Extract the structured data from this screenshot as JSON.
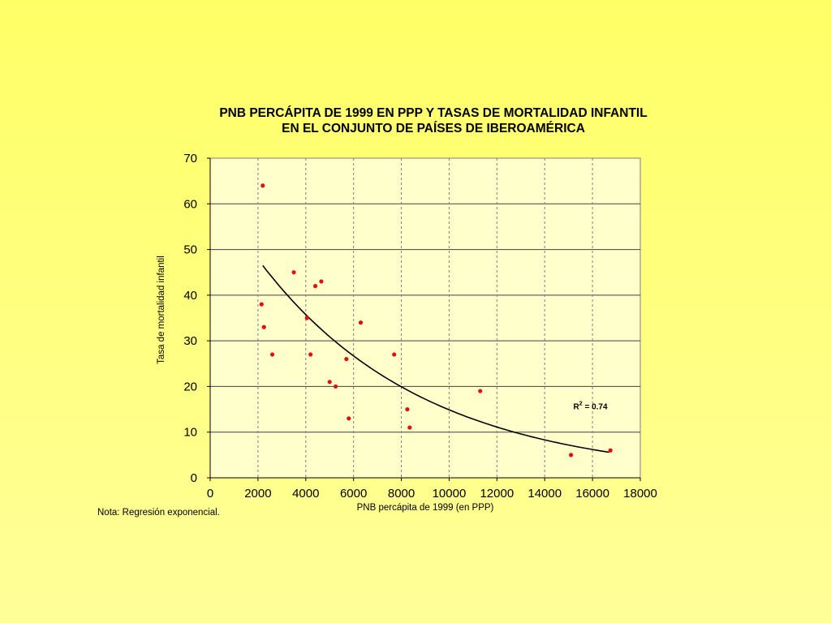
{
  "chart_data": {
    "type": "scatter",
    "title_lines": [
      "PNB PERCÁPITA DE 1999 EN PPP Y TASAS DE MORTALIDAD INFANTIL",
      "EN EL CONJUNTO DE PAÍSES DE IBEROAMÉRICA"
    ],
    "xlabel": "PNB percápita de 1999 (en PPP)",
    "ylabel": "Tasa de mortalidad infantil",
    "xlim": [
      0,
      18000
    ],
    "ylim": [
      0,
      70
    ],
    "x_ticks": [
      "0",
      "2000",
      "4000",
      "6000",
      "8000",
      "10000",
      "12000",
      "14000",
      "16000",
      "18000"
    ],
    "y_ticks": [
      "0",
      "10",
      "20",
      "30",
      "40",
      "50",
      "60",
      "70"
    ],
    "grid": {
      "horizontal": "solid",
      "vertical": "dashed"
    },
    "points": [
      {
        "x": 2200,
        "y": 64
      },
      {
        "x": 2150,
        "y": 38
      },
      {
        "x": 2250,
        "y": 33
      },
      {
        "x": 2600,
        "y": 27
      },
      {
        "x": 3500,
        "y": 45
      },
      {
        "x": 4050,
        "y": 35
      },
      {
        "x": 4200,
        "y": 27
      },
      {
        "x": 4400,
        "y": 42
      },
      {
        "x": 4650,
        "y": 43
      },
      {
        "x": 5000,
        "y": 21
      },
      {
        "x": 5250,
        "y": 20
      },
      {
        "x": 5700,
        "y": 26
      },
      {
        "x": 5800,
        "y": 13
      },
      {
        "x": 6300,
        "y": 34
      },
      {
        "x": 7700,
        "y": 27
      },
      {
        "x": 8250,
        "y": 15
      },
      {
        "x": 8350,
        "y": 11
      },
      {
        "x": 11300,
        "y": 19
      },
      {
        "x": 15100,
        "y": 5
      },
      {
        "x": 16750,
        "y": 6
      }
    ],
    "trendline": {
      "type": "exponential",
      "a": 64.1,
      "b": -0.000146,
      "x_range": [
        2200,
        16700
      ]
    },
    "annotation": {
      "text_base": "R",
      "superscript": "2",
      "text_rest": " = 0.74",
      "x": 15200,
      "y": 15
    },
    "colors": {
      "point": "#e01010",
      "trendline": "#000000",
      "plot_bg": "#ffffcc",
      "grid": "#7f7f7f"
    }
  },
  "note": "Nota: Regresión exponencial."
}
